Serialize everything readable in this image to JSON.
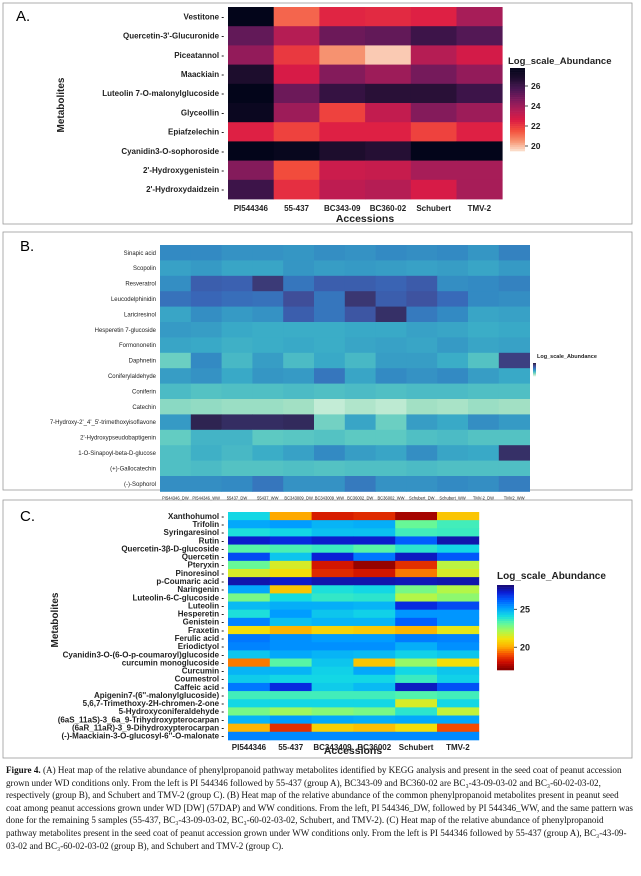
{
  "colors": {
    "rocket": [
      "#fbe2d0",
      "#f68f6c",
      "#f34d3c",
      "#db1b45",
      "#af1d57",
      "#7b1a5c",
      "#481753",
      "#1e0d2e",
      "#03051a"
    ],
    "mako": [
      "#def5e5",
      "#a4e1c4",
      "#5fcbc2",
      "#3aacc7",
      "#338ac3",
      "#3967b8",
      "#3f4f9b",
      "#3a3671",
      "#271a40"
    ],
    "jet": [
      "#7f0000",
      "#cc0a00",
      "#f54d00",
      "#ffae00",
      "#f3e20a",
      "#aef84e",
      "#5ff8a0",
      "#14dbe3",
      "#00a0ff",
      "#0060ff",
      "#0a1ed8",
      "#1a0a6e"
    ]
  },
  "panels": [
    {
      "label": "A.",
      "ylabel": "Metabolites",
      "xlabel": "Accessions",
      "legend_title": "Log_scale_Abundance"
    },
    {
      "label": "B.",
      "ylabel": "",
      "xlabel": "",
      "legend_title": "Log_scale_Abundance"
    },
    {
      "label": "C.",
      "ylabel": "Metabolites",
      "xlabel": "Accessions",
      "legend_title": "Log_scale_Abundance"
    }
  ],
  "chart_data": [
    {
      "type": "heatmap",
      "title": "A.",
      "xlabel": "Accessions",
      "ylabel": "Metabolites",
      "x": [
        "PI544346",
        "55-437",
        "BC343-09",
        "BC360-02",
        "Schubert",
        "TMV-2"
      ],
      "y": [
        "Vestitone",
        "Quercetin-3'-Glucuronide",
        "Piceatannol",
        "Maackiain",
        "Luteolin 7-O-malonylglucoside",
        "Glyceollin",
        "Epiafzelechin",
        "Cyanidin3-O-sophoroside",
        "2'-Hydroxygenistein",
        "2'-Hydroxydaidzein"
      ],
      "values": [
        [
          27.8,
          21.2,
          22.4,
          22.3,
          22.5,
          23.8
        ],
        [
          25.2,
          23.5,
          25.0,
          25.2,
          26.0,
          25.5
        ],
        [
          24.2,
          22.0,
          20.5,
          19.8,
          23.5,
          22.8
        ],
        [
          26.8,
          22.7,
          24.5,
          24.0,
          24.8,
          24.2
        ],
        [
          27.8,
          25.0,
          26.2,
          26.5,
          26.5,
          26.0
        ],
        [
          27.5,
          24.0,
          21.8,
          23.2,
          24.5,
          24.0
        ],
        [
          22.5,
          21.8,
          22.5,
          22.5,
          21.8,
          22.5
        ],
        [
          27.9,
          27.6,
          26.8,
          26.6,
          27.8,
          27.8
        ],
        [
          24.5,
          21.6,
          23.0,
          23.1,
          23.8,
          23.8
        ],
        [
          26.0,
          22.2,
          23.3,
          23.5,
          22.7,
          23.8
        ]
      ],
      "colorbar": {
        "label": "Log_scale_Abundance",
        "ticks": [
          20,
          22,
          24,
          26
        ],
        "range": [
          19.5,
          27.8
        ],
        "colormap": "rocket"
      }
    },
    {
      "type": "heatmap",
      "title": "B.",
      "xlabel": "",
      "ylabel": "",
      "x": [
        "PI544346_DW",
        "PI544346_WW",
        "55437_DW",
        "55437_WW",
        "BC343009_DW",
        "BC343009_WW",
        "BC36002_DW",
        "BC36002_WW",
        "Schubert_DW",
        "Schubert_WW",
        "TMV-2_DW",
        "TMV2_WW"
      ],
      "y": [
        "Sinapic acid",
        "Scopolin",
        "Resveratrol",
        "Leucodelphinidin",
        "Lariciresinol",
        "Hesperetin 7-glucoside",
        "Formononetin",
        "Daphnetin",
        "Coniferylaldehyde",
        "Coniferin",
        "Catechin",
        "7-Hydroxy-2'_4'_5'-trimethoxyisoflavone",
        "2'-Hydroxypseudobaptigenin",
        "1-O-Sinapoyl-beta-D-glucose",
        "(+)-Gallocatechin",
        "(-)-Sophorol"
      ],
      "values": [
        [
          5.0,
          5.0,
          4.8,
          4.8,
          4.7,
          4.9,
          4.8,
          5.0,
          4.9,
          5.0,
          4.7,
          5.2
        ],
        [
          4.4,
          4.6,
          4.3,
          4.3,
          4.7,
          4.5,
          4.6,
          4.5,
          4.4,
          4.5,
          4.3,
          4.6
        ],
        [
          4.9,
          6.2,
          6.1,
          7.5,
          5.5,
          6.2,
          6.2,
          6.0,
          6.3,
          4.9,
          5.0,
          5.2
        ],
        [
          5.6,
          5.9,
          5.7,
          5.6,
          6.8,
          5.5,
          7.6,
          6.2,
          6.6,
          5.8,
          5.0,
          4.9
        ],
        [
          4.3,
          4.9,
          4.6,
          4.8,
          6.2,
          5.5,
          6.5,
          7.8,
          5.4,
          5.0,
          4.3,
          4.4
        ],
        [
          4.6,
          4.5,
          4.2,
          4.1,
          4.1,
          4.1,
          4.2,
          4.2,
          4.4,
          4.3,
          4.1,
          4.2
        ],
        [
          4.3,
          4.2,
          4.0,
          4.1,
          4.2,
          4.1,
          4.3,
          4.4,
          4.3,
          4.6,
          4.3,
          4.4
        ],
        [
          3.1,
          5.0,
          3.8,
          4.5,
          3.7,
          4.2,
          3.8,
          4.5,
          4.5,
          4.1,
          3.5,
          7.3
        ],
        [
          4.5,
          4.8,
          4.2,
          4.7,
          4.6,
          5.5,
          4.3,
          5.0,
          4.8,
          5.0,
          4.5,
          4.2
        ],
        [
          3.7,
          3.5,
          3.6,
          3.6,
          3.7,
          3.6,
          3.7,
          3.6,
          3.7,
          3.7,
          3.6,
          3.6
        ],
        [
          2.7,
          2.6,
          2.5,
          2.5,
          2.4,
          1.9,
          2.2,
          2.0,
          2.4,
          2.3,
          2.5,
          2.4
        ],
        [
          4.6,
          8.2,
          7.9,
          7.9,
          8.0,
          3.0,
          4.3,
          3.1,
          4.5,
          4.2,
          4.9,
          4.6
        ],
        [
          3.2,
          3.9,
          3.9,
          3.3,
          3.4,
          3.5,
          3.3,
          3.3,
          3.6,
          3.7,
          3.5,
          3.5
        ],
        [
          3.6,
          4.0,
          3.8,
          4.1,
          4.4,
          5.0,
          4.5,
          4.3,
          4.9,
          4.3,
          4.2,
          7.8
        ],
        [
          3.6,
          3.7,
          3.5,
          3.5,
          3.6,
          3.5,
          3.6,
          3.6,
          3.7,
          3.6,
          3.6,
          3.6
        ],
        [
          4.9,
          4.9,
          5.0,
          5.5,
          4.8,
          4.8,
          5.4,
          4.8,
          4.8,
          5.0,
          4.9,
          5.3
        ]
      ],
      "colorbar": {
        "label": "Log_scale_Abundance",
        "range": [
          1.5,
          8.5
        ],
        "colormap": "mako"
      }
    },
    {
      "type": "heatmap",
      "title": "C.",
      "xlabel": "Accessions",
      "ylabel": "Metabolites",
      "x": [
        "PI544346",
        "55-437",
        "BC343409",
        "BC36002",
        "Schubert",
        "TMV-2"
      ],
      "y": [
        "Xanthohumol",
        "Trifolin",
        "Syringaresinol",
        "Rutin",
        "Quercetin-3β-D-glucoside",
        "Quercetin",
        "Pteryxin",
        "Pinoresinol",
        "p-Coumaric acid",
        "Naringenin",
        "Luteolin-6-C-glucoside",
        "Luteolin",
        "Hesperetin",
        "Genistein",
        "Fraxetin",
        "Ferulic acid",
        "Eriodictyol",
        "Cyanidin3-O-(6-O-p-coumaroyl)glucoside",
        "curcumin monoglucoside",
        "Curcumin",
        "Coumestrol",
        "Caffeic acid",
        "Apigenin7-(6''-malonylglucoside)",
        "5,6,7-Trimethoxy-2H-chromen-2-one",
        "5-Hydroxyconiferaldehyde",
        "(6aS_11aS)-3_6a_9-Trihydroxypterocarpan",
        "(6aR_11aR)-3_9-Dihydroxypterocarpan",
        "(-)-Maackiain-3-O-glucosyl-6''-O-malonate"
      ],
      "values": [
        [
          24.2,
          20.0,
          18.3,
          18.5,
          17.5,
          20.5
        ],
        [
          25.0,
          25.2,
          24.8,
          24.9,
          23.0,
          23.5
        ],
        [
          24.0,
          24.2,
          24.6,
          24.6,
          23.5,
          23.6
        ],
        [
          27.3,
          27.0,
          27.3,
          27.3,
          26.2,
          27.6
        ],
        [
          23.2,
          23.4,
          23.6,
          23.2,
          23.8,
          24.2
        ],
        [
          26.5,
          24.5,
          27.2,
          25.8,
          27.4,
          26.3
        ],
        [
          23.0,
          21.5,
          18.2,
          17.3,
          18.6,
          21.9
        ],
        [
          21.5,
          21.0,
          18.5,
          18.2,
          19.5,
          21.5
        ],
        [
          27.6,
          27.3,
          27.6,
          27.6,
          27.5,
          27.6
        ],
        [
          25.0,
          20.5,
          24.0,
          24.2,
          22.8,
          22.0
        ],
        [
          22.8,
          24.1,
          23.7,
          23.8,
          22.0,
          22.5
        ],
        [
          24.7,
          24.9,
          24.9,
          24.8,
          27.0,
          26.5
        ],
        [
          24.0,
          25.2,
          24.5,
          24.3,
          25.3,
          25.3
        ],
        [
          25.6,
          24.6,
          24.8,
          24.8,
          26.2,
          25.3
        ],
        [
          21.0,
          20.2,
          20.8,
          20.6,
          20.2,
          21.3
        ],
        [
          25.8,
          25.4,
          25.2,
          25.2,
          25.7,
          25.6
        ],
        [
          25.6,
          25.4,
          25.4,
          25.4,
          24.9,
          25.4
        ],
        [
          24.5,
          25.0,
          24.8,
          24.7,
          24.3,
          24.5
        ],
        [
          19.5,
          23.2,
          24.5,
          20.5,
          22.4,
          21.0
        ],
        [
          24.8,
          24.8,
          24.3,
          25.0,
          24.2,
          24.5
        ],
        [
          24.4,
          24.2,
          24.2,
          24.2,
          23.6,
          24.3
        ],
        [
          25.8,
          27.0,
          24.4,
          24.7,
          27.4,
          26.4
        ],
        [
          23.5,
          23.5,
          23.5,
          23.5,
          23.3,
          23.5
        ],
        [
          24.2,
          24.2,
          24.2,
          24.2,
          21.5,
          24.2
        ],
        [
          22.8,
          22.3,
          22.6,
          22.8,
          23.8,
          21.8
        ],
        [
          24.8,
          25.2,
          25.0,
          24.9,
          25.0,
          25.0
        ],
        [
          20.2,
          18.6,
          20.7,
          20.4,
          21.0,
          19.0
        ],
        [
          25.6,
          25.5,
          25.5,
          25.5,
          25.5,
          25.5
        ]
      ],
      "colorbar": {
        "label": "Log_scale_Abundance",
        "ticks": [
          20,
          25
        ],
        "range": [
          17,
          28.2
        ],
        "colormap": "jet"
      }
    }
  ],
  "caption": {
    "lead": "Figure 4.",
    "text": "(A) Heat map of the relative abundance of phenylpropanoid pathway metabolites identified by KEGG analysis and present in the seed coat of peanut accession grown under WD conditions only. From the left is PI 544346 followed by 55-437 (group A), BC343-09 and BC360-02 are BC₃-43-09-03-02 and BC₃-60-02-03-02, respectively (group B), and Schubert and TMV-2 (group C). (B) Heat map of the relative abundance of the common phenylpropanoid metabolites present in peanut seed coat among peanut accessions grown under WD [DW] (57DAP) and WW conditions. From the left, PI 544346_DW, followed by PI 544346_WW, and the same pattern was done for the remaining 5 samples (55-437, BC₃-43-09-03-02, BC₃-60-02-03-02, Schubert, and TMV-2). (C) Heat map of the relative abundance of phenylpropanoid pathway metabolites present in the seed coat of peanut accession grown under WW conditions only. From the left is PI 544346 followed by 55-437 (group A), BC₃-43-09-03-02 and BC₃-60-02-03-02 (group B), and Schubert and TMV-2 (group C)."
  }
}
